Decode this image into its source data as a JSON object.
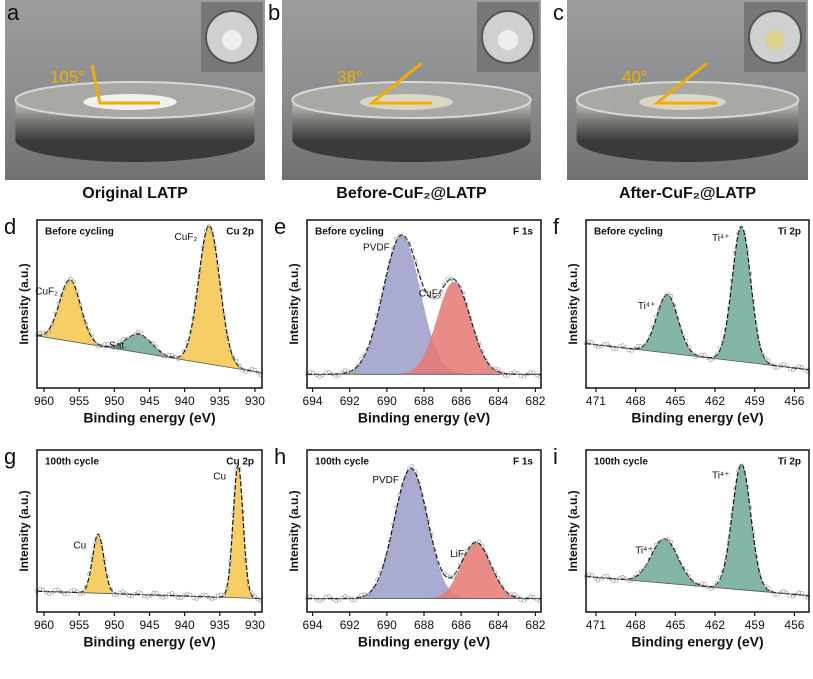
{
  "photos": [
    {
      "letter": "a",
      "angle": "105°",
      "caption": "Original LATP"
    },
    {
      "letter": "b",
      "angle": "38°",
      "caption": "Before-CuF₂@LATP"
    },
    {
      "letter": "c",
      "angle": "40°",
      "caption": "After-CuF₂@LATP"
    }
  ],
  "chart_data": [
    {
      "type": "area",
      "letter": "d",
      "title": "Before cycling",
      "element": "Cu 2p",
      "xlabel": "Binding energy (eV)",
      "ylabel": "Intensity (a.u.)",
      "xlim": [
        961,
        929
      ],
      "xticks": [
        960,
        955,
        950,
        945,
        940,
        935,
        930
      ],
      "background": [
        0.3,
        0.06
      ],
      "series": [
        {
          "name": "CuF₂",
          "color": "#f3c64a",
          "center": 956.3,
          "width": 1.5,
          "height": 0.4
        },
        {
          "name": "Sat.",
          "color": "#6fa89a",
          "center": 946.5,
          "width": 1.8,
          "height": 0.12
        },
        {
          "name": "CuF₂",
          "color": "#f3c64a",
          "center": 936.5,
          "width": 1.5,
          "height": 0.9
        }
      ]
    },
    {
      "type": "area",
      "letter": "e",
      "title": "Before cycling",
      "element": "F 1s",
      "xlabel": "Binding energy (eV)",
      "ylabel": "Intensity (a.u.)",
      "xlim": [
        694.3,
        681.7
      ],
      "xticks": [
        694,
        692,
        690,
        688,
        686,
        684,
        682
      ],
      "background": [
        0.05,
        0.05
      ],
      "series": [
        {
          "name": "PVDF",
          "color": "#9b9cc8",
          "center": 689.2,
          "width": 1.0,
          "height": 0.9
        },
        {
          "name": "CuF₂",
          "color": "#e57873",
          "center": 686.4,
          "width": 0.9,
          "height": 0.6
        }
      ]
    },
    {
      "type": "area",
      "letter": "f",
      "title": "Before cycling",
      "element": "Ti 2p",
      "xlabel": "Binding energy (eV)",
      "ylabel": "Intensity (a.u.)",
      "xlim": [
        471.75,
        454.9
      ],
      "xticks": [
        471,
        468,
        465,
        462,
        459,
        456
      ],
      "background": [
        0.25,
        0.08
      ],
      "series": [
        {
          "name": "Ti⁴⁺",
          "color": "#6fa89a",
          "center": 465.6,
          "width": 0.8,
          "height": 0.38
        },
        {
          "name": "Ti⁴⁺",
          "color": "#6fa89a",
          "center": 460.0,
          "width": 0.7,
          "height": 0.88
        }
      ]
    },
    {
      "type": "area",
      "letter": "g",
      "title": "100th cycle",
      "element": "Cu 2p",
      "xlabel": "Binding energy (eV)",
      "ylabel": "Intensity (a.u.)",
      "xlim": [
        961,
        929
      ],
      "xticks": [
        960,
        955,
        950,
        945,
        940,
        935,
        930
      ],
      "background": [
        0.1,
        0.05
      ],
      "series": [
        {
          "name": "Cu",
          "color": "#f3c64a",
          "center": 952.3,
          "width": 0.8,
          "height": 0.4
        },
        {
          "name": "Cu",
          "color": "#f3c64a",
          "center": 932.4,
          "width": 0.7,
          "height": 0.9
        }
      ]
    },
    {
      "type": "area",
      "letter": "h",
      "title": "100th cycle",
      "element": "F 1s",
      "xlabel": "Binding energy (eV)",
      "ylabel": "Intensity (a.u.)",
      "xlim": [
        694.3,
        681.7
      ],
      "xticks": [
        694,
        692,
        690,
        688,
        686,
        684,
        682
      ],
      "background": [
        0.05,
        0.05
      ],
      "series": [
        {
          "name": "PVDF",
          "color": "#9b9cc8",
          "center": 688.7,
          "width": 0.9,
          "height": 0.88
        },
        {
          "name": "LiF",
          "color": "#e57873",
          "center": 685.2,
          "width": 0.8,
          "height": 0.38
        }
      ]
    },
    {
      "type": "area",
      "letter": "i",
      "title": "100th cycle",
      "element": "Ti 2p",
      "xlabel": "Binding energy (eV)",
      "ylabel": "Intensity (a.u.)",
      "xlim": [
        471.75,
        454.9
      ],
      "xticks": [
        471,
        468,
        465,
        462,
        459,
        456
      ],
      "background": [
        0.2,
        0.07
      ],
      "series": [
        {
          "name": "Ti⁴⁺",
          "color": "#6fa89a",
          "center": 465.8,
          "width": 1.0,
          "height": 0.3
        },
        {
          "name": "Ti⁴⁺",
          "color": "#6fa89a",
          "center": 460.0,
          "width": 0.7,
          "height": 0.85
        }
      ]
    }
  ]
}
